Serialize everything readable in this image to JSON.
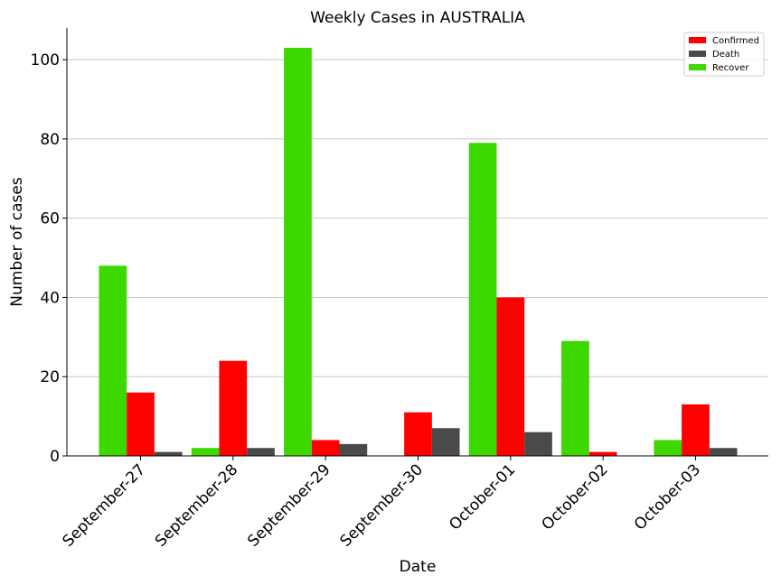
{
  "chart_data": {
    "type": "bar",
    "title": "Weekly Cases in AUSTRALIA",
    "xlabel": "Date",
    "ylabel": "Number of cases",
    "categories": [
      "September-27",
      "September-28",
      "September-29",
      "September-30",
      "October-01",
      "October-02",
      "October-03"
    ],
    "series": [
      {
        "name": "Recover",
        "color": "#3cd800",
        "values": [
          48,
          2,
          103,
          0,
          79,
          29,
          4
        ]
      },
      {
        "name": "Confirmed",
        "color": "#ff0000",
        "values": [
          16,
          24,
          4,
          11,
          40,
          1,
          13
        ]
      },
      {
        "name": "Death",
        "color": "#4a4a4a",
        "values": [
          1,
          2,
          3,
          7,
          6,
          0,
          2
        ]
      }
    ],
    "legend_order": [
      "Confirmed",
      "Death",
      "Recover"
    ],
    "legend_position": "top-right",
    "yticks": [
      0,
      20,
      40,
      60,
      80,
      100
    ],
    "ylim": [
      0,
      108
    ],
    "grid": "y"
  }
}
